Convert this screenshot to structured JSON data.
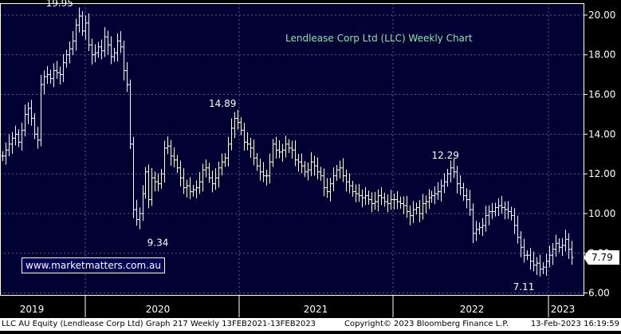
{
  "chart_data": {
    "type": "bar",
    "subtype": "ohlc",
    "title": "Lendlease Corp Ltd (LLC) Weekly Chart",
    "x_ticks": [
      "2019",
      "2020",
      "2021",
      "2022",
      "2023"
    ],
    "y_ticks": [
      "6.00",
      "8.00",
      "10.00",
      "12.00",
      "14.00",
      "16.00",
      "18.00",
      "20.00"
    ],
    "ylim": [
      5.9,
      20.6
    ],
    "grid": true,
    "last_price": "7.79",
    "colors": {
      "background": "#000033",
      "plot_border": "#ffffff",
      "grid": "#5a5aa0",
      "bars": "#ffffff",
      "title": "#7cf29a",
      "last_price_box": "#ffffff"
    },
    "annotations": [
      {
        "label": "19.95",
        "time": 2019.22,
        "price": 19.95,
        "position": "above"
      },
      {
        "label": "9.34",
        "time": 2020.0,
        "price": 9.34,
        "position": "below"
      },
      {
        "label": "14.89",
        "time": 2020.41,
        "price": 14.89,
        "position": "above"
      },
      {
        "label": "12.29",
        "time": 2021.83,
        "price": 12.29,
        "position": "above"
      },
      {
        "label": "7.11",
        "time": 2022.57,
        "price": 7.11,
        "position": "below"
      }
    ],
    "series": [
      {
        "values": [
          12.9,
          13.2,
          13.5,
          13.8,
          14.0,
          13.6,
          14.2,
          15.0,
          15.3,
          14.8,
          14.0,
          13.7,
          16.5,
          16.9,
          17.0,
          16.8,
          17.2,
          17.1,
          17.0,
          17.6,
          18.0,
          18.3,
          18.7,
          19.5,
          19.95,
          19.2,
          19.6,
          18.5,
          18.0,
          18.1,
          18.4,
          18.2,
          18.9,
          18.5,
          17.9,
          18.1,
          18.7,
          18.4,
          17.2,
          16.5,
          13.5,
          10.2,
          9.7,
          10.0,
          11.0,
          12.1,
          10.7,
          11.8,
          11.6,
          11.5,
          12.0,
          13.3,
          13.4,
          12.9,
          12.7,
          12.3,
          11.8,
          11.3,
          11.4,
          11.1,
          11.2,
          11.3,
          11.6,
          12.2,
          12.3,
          11.8,
          11.5,
          11.8,
          12.3,
          12.6,
          12.8,
          13.5,
          14.3,
          14.8,
          14.6,
          14.2,
          13.6,
          13.5,
          13.3,
          12.8,
          12.4,
          12.1,
          11.9,
          11.9,
          12.6,
          13.5,
          13.2,
          13.1,
          13.2,
          13.5,
          13.3,
          13.2,
          12.7,
          12.6,
          12.4,
          12.1,
          12.2,
          12.6,
          12.4,
          12.1,
          11.9,
          11.3,
          11.1,
          11.5,
          11.9,
          12.2,
          12.3,
          11.9,
          11.6,
          11.4,
          11.1,
          11.0,
          10.9,
          10.8,
          10.9,
          10.7,
          10.5,
          10.6,
          10.9,
          10.8,
          10.6,
          10.5,
          10.7,
          10.7,
          10.6,
          10.5,
          10.4,
          10.1,
          9.9,
          10.2,
          10.3,
          10.0,
          10.5,
          10.6,
          10.8,
          10.9,
          11.0,
          11.1,
          11.4,
          11.6,
          12.0,
          12.3,
          12.1,
          11.5,
          11.3,
          10.9,
          10.7,
          10.2,
          9.0,
          9.2,
          9.3,
          9.4,
          9.9,
          10.1,
          10.1,
          10.3,
          10.4,
          10.3,
          10.2,
          10.1,
          9.9,
          9.4,
          8.8,
          8.3,
          7.9,
          7.9,
          7.6,
          7.4,
          7.5,
          7.2,
          7.3,
          7.6,
          7.9,
          8.2,
          8.5,
          8.3,
          8.4,
          8.7,
          8.2,
          7.79
        ]
      }
    ]
  },
  "watermark": "www.marketmatters.com.au",
  "footer": {
    "left": "LLC AU Equity (Lendlease Corp Ltd) Graph 217  Weekly 13FEB2021-13FEB2023",
    "center": "Copyright© 2023 Bloomberg Finance L.P.",
    "right": "13-Feb-2023 16:19:59"
  }
}
